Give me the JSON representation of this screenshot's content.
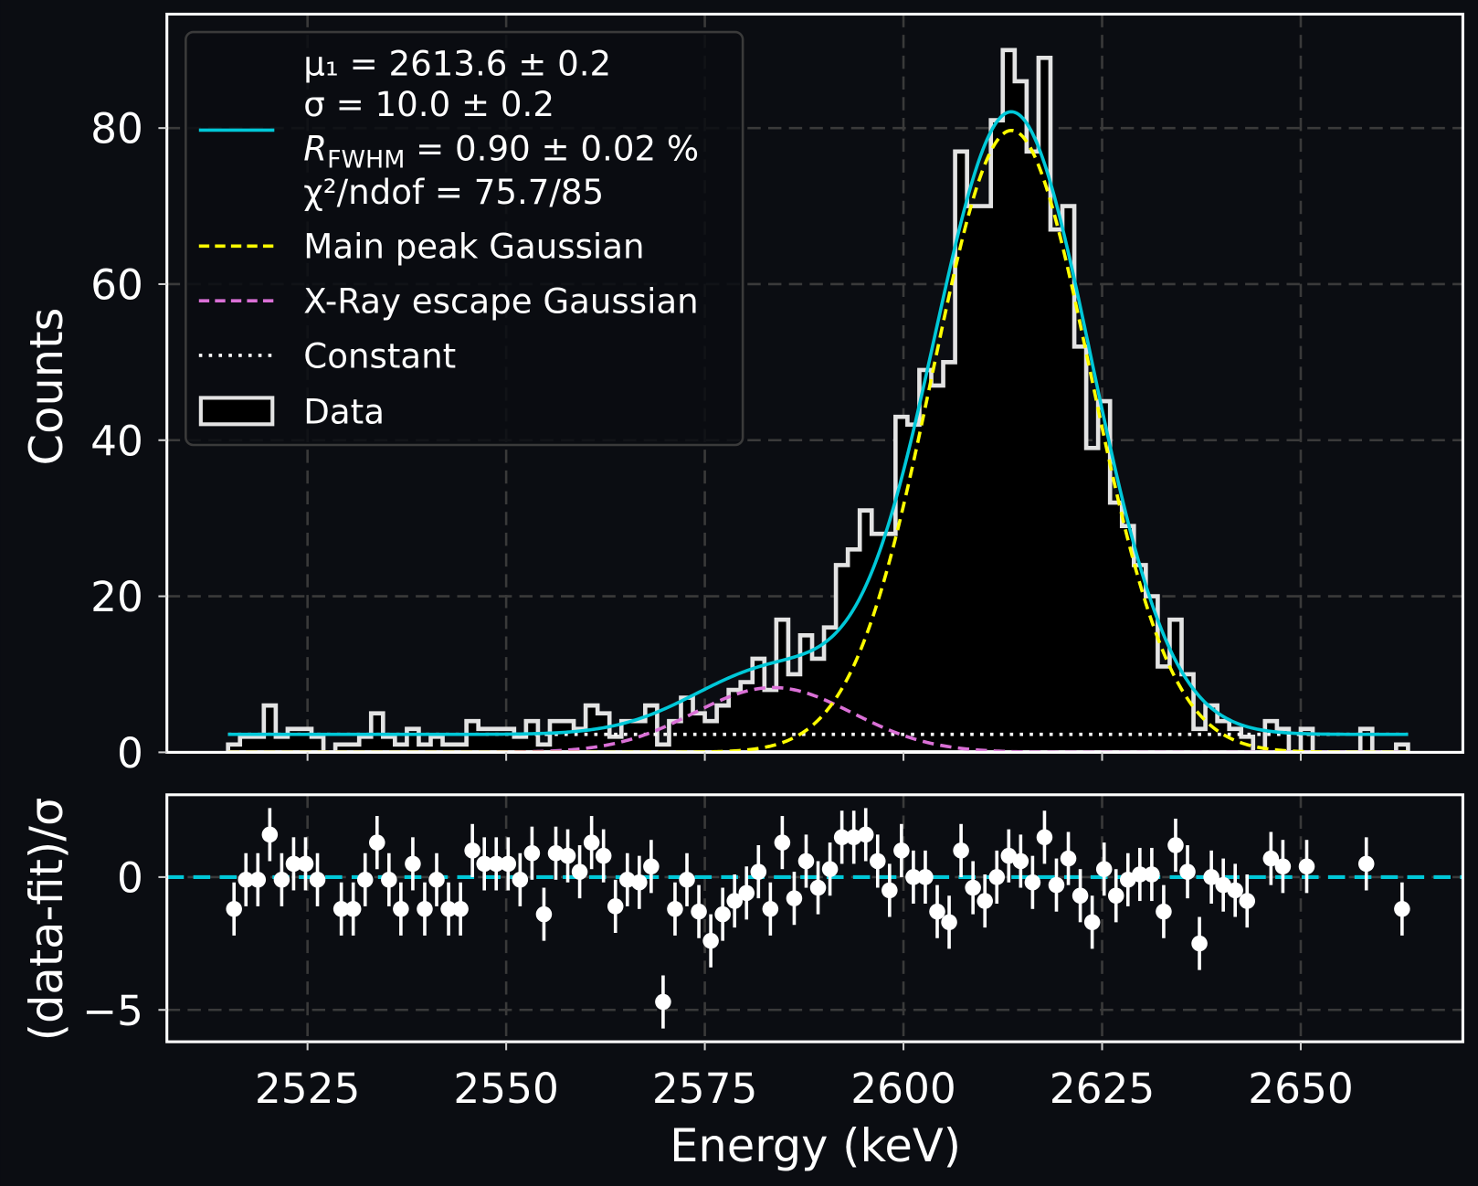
{
  "colors": {
    "background": "#0b0d12",
    "fit_total": "#00c8d8",
    "main_peak": "#ffff00",
    "escape_peak": "#da70d6",
    "constant": "#ffffff",
    "data_edge": "#e3e3e3",
    "data_fill": "#000000",
    "grid": "#3a3a3a",
    "residual_points": "#ffffff"
  },
  "chart_data": [
    {
      "type": "histogram",
      "xlabel": "Energy (keV)",
      "ylabel": "Counts",
      "xlim": [
        2507.3,
        2670.4
      ],
      "ylim": [
        0,
        94.6
      ],
      "grid": true,
      "xticks": [
        "2525",
        "2550",
        "2575",
        "2600",
        "2625",
        "2650"
      ],
      "xtick_values": [
        2525,
        2550,
        2575,
        2600,
        2625,
        2650
      ],
      "yticks": [
        "0",
        "20",
        "40",
        "60",
        "80"
      ],
      "ytick_values": [
        0,
        20,
        40,
        60,
        80
      ],
      "bin_start": 2515,
      "bin_width": 1.5,
      "counts": [
        1,
        2,
        2,
        6,
        2,
        3,
        3,
        2,
        0,
        1,
        1,
        2,
        5,
        2,
        1,
        3,
        1,
        2,
        1,
        1,
        4,
        3,
        3,
        3,
        2,
        4,
        1,
        4,
        4,
        3,
        6,
        5,
        2,
        4,
        4,
        6,
        1,
        4,
        7,
        5,
        4,
        6,
        8,
        9,
        12,
        8,
        17,
        10,
        15,
        12,
        16,
        24,
        26,
        31,
        28,
        28,
        43,
        42,
        49,
        47,
        50,
        77,
        70,
        70,
        81,
        90,
        86,
        77,
        89,
        67,
        70,
        52,
        39,
        45,
        32,
        29,
        24,
        20,
        11,
        17,
        10,
        3,
        6,
        4,
        3,
        2,
        0,
        4,
        3,
        0,
        3,
        0,
        0,
        0,
        0,
        3,
        0,
        0,
        1
      ],
      "fit_components": {
        "constant": 2.3,
        "main_peak": {
          "amplitude": 79.7,
          "mean": 2613.6,
          "sigma": 10.0
        },
        "escape_peak": {
          "amplitude": 8.3,
          "mean": 2583.6,
          "sigma": 10.0
        },
        "range": [
          2515,
          2663.5
        ]
      },
      "legend": {
        "placement": "top-left",
        "fit_lines": {
          "mu": "μ₁ = 2613.6 ± 0.2",
          "sigma": "σ = 10.0 ± 0.2",
          "r_symbol": "R",
          "r_subscript": "FWHM",
          "r_value": " = 0.90 ± 0.02 %",
          "chi2": "χ²/ndof = 75.7/85"
        },
        "main_peak": "Main peak Gaussian",
        "escape_peak": "X-Ray escape Gaussian",
        "constant": "Constant",
        "data": "Data"
      }
    },
    {
      "type": "scatter",
      "xlabel": "Energy (keV)",
      "ylabel": "(data-fit)/σ",
      "xlim": [
        2507.3,
        2670.4
      ],
      "ylim": [
        -6.2,
        3.1
      ],
      "grid": true,
      "yticks": [
        "−5",
        "0"
      ],
      "ytick_values": [
        -5,
        0
      ],
      "error": 1,
      "reference_line": 0,
      "points": [
        [
          2515.75,
          -1.2
        ],
        [
          2517.25,
          -0.1
        ],
        [
          2518.75,
          -0.1
        ],
        [
          2520.25,
          1.6
        ],
        [
          2521.75,
          -0.1
        ],
        [
          2523.25,
          0.5
        ],
        [
          2524.75,
          0.5
        ],
        [
          2526.25,
          -0.1
        ],
        [
          2529.25,
          -1.2
        ],
        [
          2530.75,
          -1.2
        ],
        [
          2532.25,
          -0.1
        ],
        [
          2533.75,
          1.3
        ],
        [
          2535.25,
          -0.1
        ],
        [
          2536.75,
          -1.2
        ],
        [
          2538.25,
          0.5
        ],
        [
          2539.75,
          -1.2
        ],
        [
          2541.25,
          -0.1
        ],
        [
          2542.75,
          -1.2
        ],
        [
          2544.25,
          -1.2
        ],
        [
          2545.75,
          1.0
        ],
        [
          2547.25,
          0.5
        ],
        [
          2548.75,
          0.5
        ],
        [
          2550.25,
          0.5
        ],
        [
          2551.75,
          -0.1
        ],
        [
          2553.25,
          0.9
        ],
        [
          2554.75,
          -1.4
        ],
        [
          2556.25,
          0.9
        ],
        [
          2557.75,
          0.8
        ],
        [
          2559.25,
          0.2
        ],
        [
          2560.75,
          1.3
        ],
        [
          2562.25,
          0.8
        ],
        [
          2563.75,
          -1.1
        ],
        [
          2565.25,
          -0.1
        ],
        [
          2566.75,
          -0.2
        ],
        [
          2568.25,
          0.4
        ],
        [
          2569.75,
          -4.7
        ],
        [
          2571.25,
          -1.2
        ],
        [
          2572.75,
          -0.1
        ],
        [
          2574.25,
          -1.3
        ],
        [
          2575.75,
          -2.4
        ],
        [
          2577.25,
          -1.4
        ],
        [
          2578.75,
          -0.9
        ],
        [
          2580.25,
          -0.6
        ],
        [
          2581.75,
          0.2
        ],
        [
          2583.25,
          -1.2
        ],
        [
          2584.75,
          1.3
        ],
        [
          2586.25,
          -0.8
        ],
        [
          2587.75,
          0.6
        ],
        [
          2589.25,
          -0.4
        ],
        [
          2590.75,
          0.3
        ],
        [
          2592.25,
          1.5
        ],
        [
          2593.75,
          1.5
        ],
        [
          2595.25,
          1.6
        ],
        [
          2596.75,
          0.6
        ],
        [
          2598.25,
          -0.5
        ],
        [
          2599.75,
          1.0
        ],
        [
          2601.25,
          0.0
        ],
        [
          2602.75,
          0.0
        ],
        [
          2604.25,
          -1.3
        ],
        [
          2605.75,
          -1.7
        ],
        [
          2607.25,
          1.0
        ],
        [
          2608.75,
          -0.4
        ],
        [
          2610.25,
          -0.9
        ],
        [
          2611.75,
          0.0
        ],
        [
          2613.25,
          0.8
        ],
        [
          2614.75,
          0.6
        ],
        [
          2616.25,
          -0.2
        ],
        [
          2617.75,
          1.5
        ],
        [
          2619.25,
          -0.3
        ],
        [
          2620.75,
          0.7
        ],
        [
          2622.25,
          -0.7
        ],
        [
          2623.75,
          -1.7
        ],
        [
          2625.25,
          0.3
        ],
        [
          2626.75,
          -0.7
        ],
        [
          2628.25,
          -0.1
        ],
        [
          2629.75,
          0.1
        ],
        [
          2631.25,
          0.1
        ],
        [
          2632.75,
          -1.3
        ],
        [
          2634.25,
          1.2
        ],
        [
          2635.75,
          0.2
        ],
        [
          2637.25,
          -2.5
        ],
        [
          2638.75,
          0.0
        ],
        [
          2640.25,
          -0.3
        ],
        [
          2641.75,
          -0.5
        ],
        [
          2643.25,
          -0.9
        ],
        [
          2646.25,
          0.7
        ],
        [
          2647.75,
          0.4
        ],
        [
          2650.75,
          0.4
        ],
        [
          2658.25,
          0.5
        ],
        [
          2662.75,
          -1.2
        ]
      ]
    }
  ]
}
